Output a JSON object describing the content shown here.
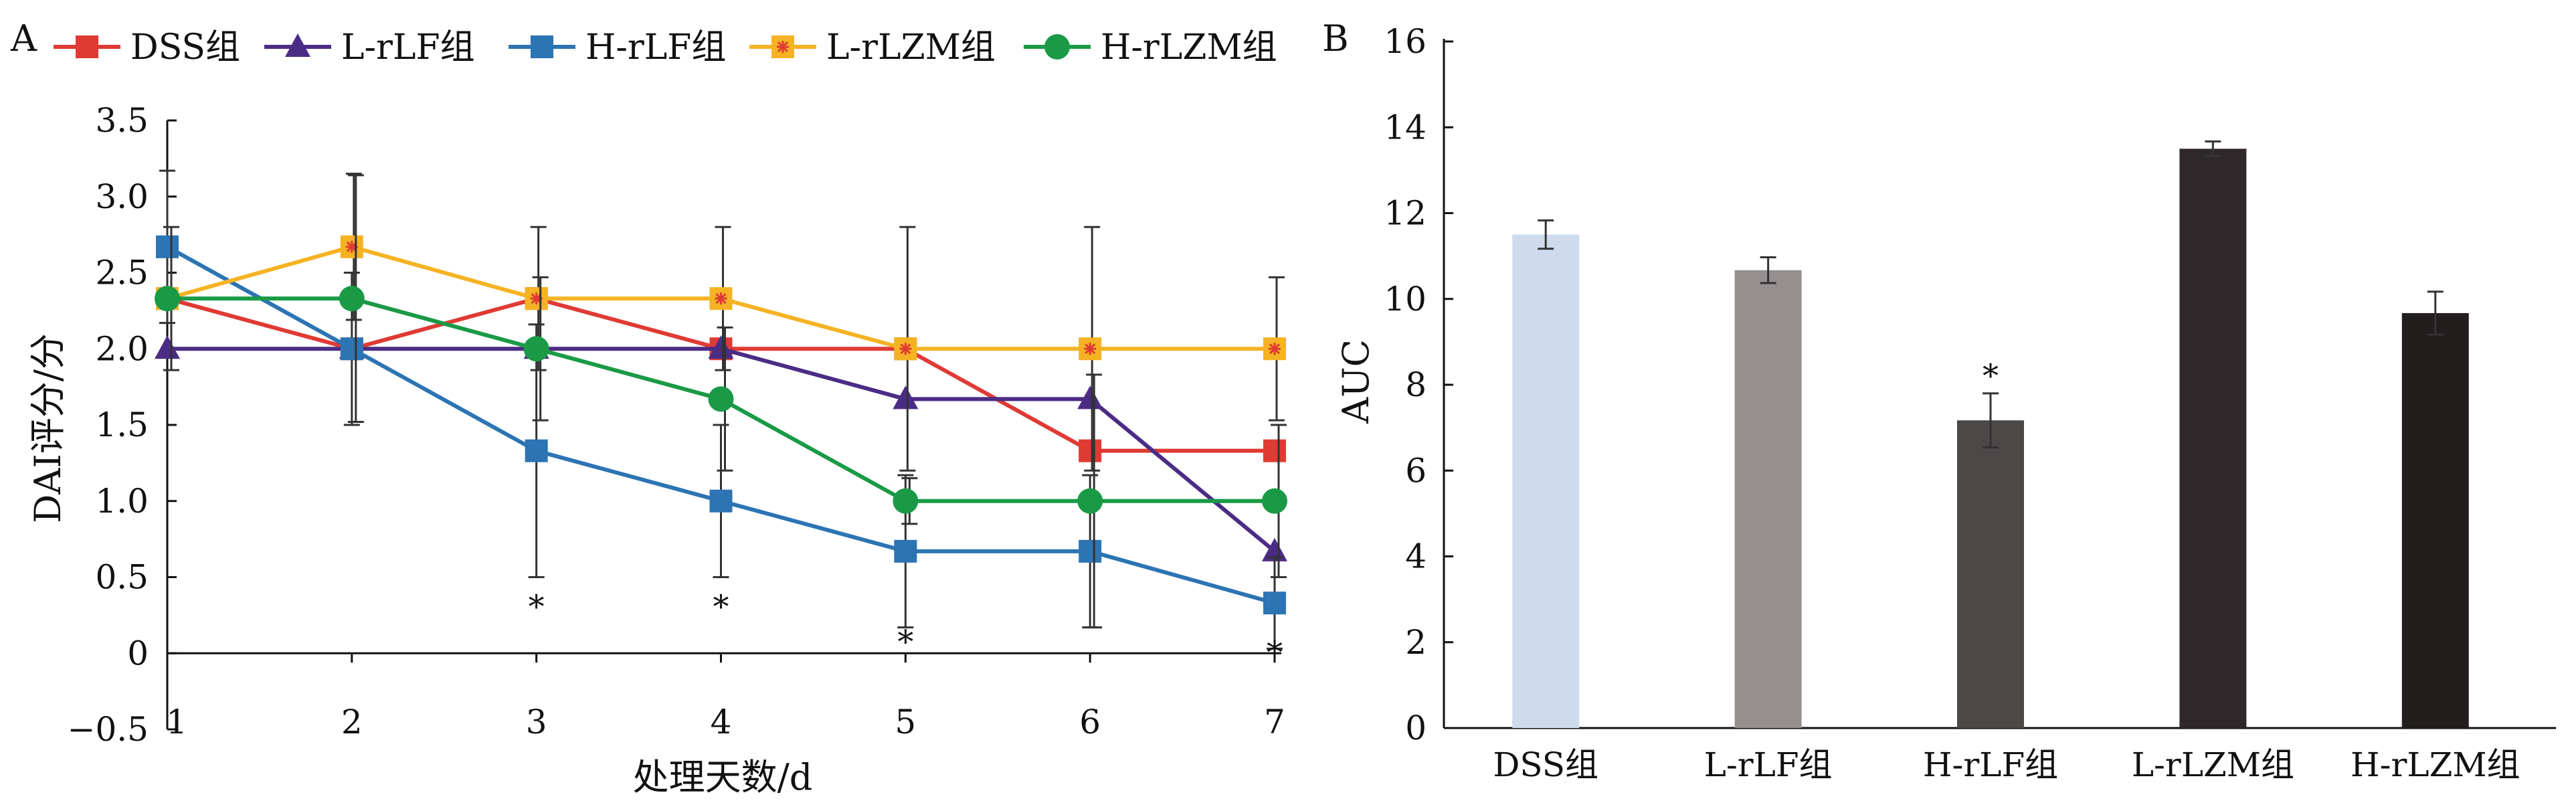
{
  "chart_data": [
    {
      "panel": "A",
      "type": "line",
      "xlabel": "处理天数/d",
      "ylabel": "DAI评分/分",
      "ylim": [
        -0.5,
        3.5
      ],
      "x": [
        1,
        2,
        3,
        4,
        5,
        6,
        7
      ],
      "x_tick_labels": [
        "1",
        "2",
        "3",
        "4",
        "5",
        "6",
        "7"
      ],
      "y_ticks": [
        -0.5,
        0,
        0.5,
        1.0,
        1.5,
        2.0,
        2.5,
        3.0,
        3.5
      ],
      "y_tick_labels": [
        "−0.5",
        "0",
        "0.5",
        "1.0",
        "1.5",
        "2.0",
        "2.5",
        "3.0",
        "3.5"
      ],
      "legend_position": "top",
      "series": [
        {
          "name": "DSS组",
          "color": "#e03a34",
          "marker": "square",
          "values": [
            2.33,
            2.0,
            2.33,
            2.0,
            2.0,
            1.33,
            1.33
          ],
          "errors": [
            0.0,
            0.0,
            0.0,
            0.0,
            0.0,
            0.0,
            0.0
          ]
        },
        {
          "name": "L-rLF组",
          "color": "#4b2c84",
          "marker": "triangle",
          "values": [
            2.0,
            2.0,
            2.0,
            2.0,
            1.67,
            1.67,
            0.67
          ],
          "errors": [
            0.0,
            0.0,
            0.0,
            0.0,
            0.0,
            0.0,
            0.0
          ]
        },
        {
          "name": "H-rLF组",
          "color": "#2c74b3",
          "marker": "square",
          "values": [
            2.67,
            2.0,
            1.33,
            1.0,
            0.67,
            0.67,
            0.33
          ],
          "errors": [
            0.5,
            0.5,
            0.83,
            0.5,
            0.5,
            0.5,
            0.3
          ]
        },
        {
          "name": "L-rLZM组",
          "color": "#f5b324",
          "marker": "star-square",
          "values": [
            2.33,
            2.67,
            2.33,
            2.33,
            2.0,
            2.0,
            2.0
          ],
          "errors": [
            0.0,
            0.48,
            0.47,
            0.47,
            0.8,
            0.8,
            0.47
          ]
        },
        {
          "name": "H-rLZM组",
          "color": "#1a9a46",
          "marker": "circle",
          "values": [
            2.33,
            2.33,
            2.0,
            1.67,
            1.0,
            1.0,
            1.0
          ],
          "errors": [
            0.47,
            0.81,
            0.47,
            0.47,
            0.15,
            0.83,
            0.5
          ]
        }
      ],
      "annotations": [
        {
          "x": 3,
          "y": 0.33,
          "text": "*"
        },
        {
          "x": 4,
          "y": 0.33,
          "text": "*"
        },
        {
          "x": 5,
          "y": 0.1,
          "text": "*"
        },
        {
          "x": 7,
          "y": 0.03,
          "text": "*"
        }
      ]
    },
    {
      "panel": "B",
      "type": "bar",
      "xlabel": "",
      "ylabel": "AUC",
      "ylim": [
        0,
        16
      ],
      "y_ticks": [
        0,
        2,
        4,
        6,
        8,
        10,
        12,
        14,
        16
      ],
      "y_tick_labels": [
        "0",
        "2",
        "4",
        "6",
        "8",
        "10",
        "12",
        "14",
        "16"
      ],
      "categories": [
        "DSS组",
        "L-rLF组",
        "H-rLF组",
        "L-rLZM组",
        "H-rLZM组"
      ],
      "values": [
        11.5,
        10.67,
        7.17,
        13.5,
        9.67
      ],
      "errors": [
        0.33,
        0.3,
        0.63,
        0.17,
        0.5
      ],
      "colors": [
        "#cfdbec",
        "#958f8f",
        "#4b4847",
        "#2f282a",
        "#221e1d"
      ],
      "annotations": [
        {
          "category": "H-rLF组",
          "text": "*"
        }
      ]
    }
  ]
}
